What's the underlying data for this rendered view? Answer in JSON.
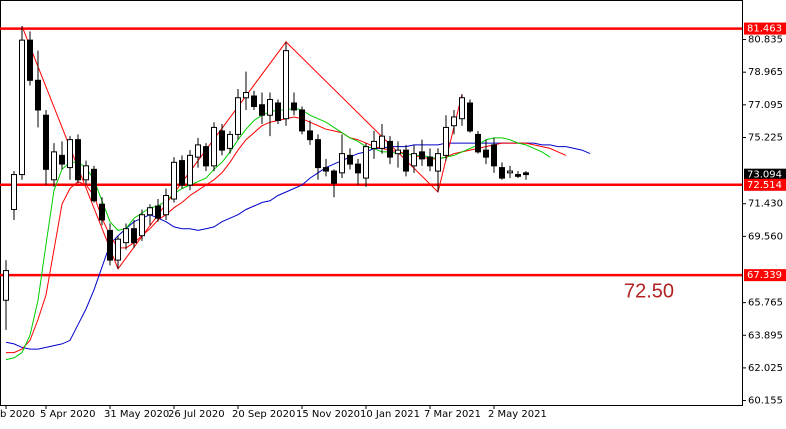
{
  "chart_data": {
    "type": "candlestick",
    "categories": [
      "b 2020",
      null,
      null,
      null,
      null,
      "5 Apr 2020",
      null,
      null,
      null,
      null,
      null,
      null,
      null,
      "31 May 2020",
      null,
      null,
      null,
      null,
      null,
      null,
      null,
      "26 Jul 2020",
      null,
      null,
      null,
      null,
      null,
      null,
      null,
      "20 Sep 2020",
      null,
      null,
      null,
      null,
      null,
      null,
      null,
      "15 Nov 2020",
      null,
      null,
      null,
      null,
      null,
      null,
      null,
      "10 Jan 2021",
      null,
      null,
      null,
      null,
      null,
      null,
      null,
      "7 Mar 2021",
      null,
      null,
      null,
      null,
      null,
      null,
      null,
      "2 May 2021",
      null,
      null,
      null,
      null,
      null,
      null,
      null,
      null,
      null,
      null,
      null,
      null
    ],
    "open": [
      65.9,
      71.1,
      73.1,
      80.8,
      78.5,
      76.5,
      72.8,
      74.2,
      73.5,
      75.1,
      72.8,
      73.4,
      71.4,
      69.9,
      68.2,
      69.2,
      70.0,
      69.6,
      70.8,
      71.3,
      70.8,
      71.7,
      73.9,
      72.5,
      74.1,
      74.7,
      73.6,
      75.6,
      74.6,
      75.4,
      77.5,
      77.6,
      77.1,
      76.5,
      77.2,
      76.3,
      77.2,
      76.8,
      75.6,
      75.1,
      73.5,
      73.3,
      73.2,
      74.2,
      73.7,
      72.9,
      74.6,
      74.6,
      75.0,
      74.3,
      74.5,
      73.6,
      74.4,
      74.1,
      73.3,
      74.2,
      75.9,
      76.3,
      77.2,
      75.4,
      74.5,
      74.8,
      73.5,
      73.2,
      73.1,
      73.2,
      null,
      null,
      null,
      null,
      null,
      null,
      null,
      null
    ],
    "high": [
      68.2,
      73.3,
      81.6,
      81.3,
      80.2,
      76.8,
      74.9,
      75.0,
      75.3,
      75.4,
      73.9,
      73.6,
      71.8,
      70.3,
      69.6,
      70.3,
      70.5,
      71.1,
      71.4,
      71.7,
      72.3,
      74.1,
      74.2,
      74.5,
      75.2,
      74.9,
      76.1,
      76.0,
      75.6,
      78.0,
      79.0,
      77.9,
      77.8,
      77.8,
      77.4,
      80.7,
      77.8,
      77.0,
      76.2,
      75.4,
      74.0,
      73.4,
      75.4,
      74.6,
      74.0,
      74.9,
      75.6,
      76.0,
      75.3,
      75.0,
      74.8,
      74.8,
      75.1,
      74.6,
      74.6,
      76.5,
      76.8,
      77.7,
      77.4,
      75.6,
      75.1,
      75.2,
      73.8,
      73.6,
      73.3,
      73.3,
      null,
      null,
      null,
      null,
      null,
      null,
      null,
      null
    ],
    "low": [
      64.2,
      70.5,
      72.8,
      78.2,
      75.8,
      72.5,
      72.4,
      73.4,
      72.8,
      72.6,
      72.5,
      71.5,
      70.2,
      67.9,
      67.7,
      68.8,
      68.9,
      69.3,
      70.2,
      70.4,
      70.5,
      71.5,
      72.3,
      72.2,
      73.5,
      73.3,
      73.3,
      74.2,
      74.3,
      75.1,
      76.8,
      76.8,
      76.0,
      75.3,
      76.0,
      75.9,
      76.5,
      75.4,
      74.8,
      72.8,
      73.0,
      71.8,
      72.9,
      73.4,
      72.5,
      72.4,
      74.0,
      74.3,
      73.7,
      73.5,
      73.0,
      73.2,
      73.6,
      73.3,
      72.1,
      73.9,
      75.4,
      75.9,
      75.5,
      74.3,
      73.7,
      73.2,
      72.8,
      72.9,
      72.9,
      72.8,
      null,
      null,
      null,
      null,
      null,
      null,
      null,
      null
    ],
    "close": [
      67.6,
      73.1,
      80.8,
      78.5,
      76.8,
      73.4,
      74.4,
      73.7,
      75.1,
      72.8,
      73.6,
      71.6,
      70.5,
      68.2,
      69.4,
      70.0,
      69.2,
      70.8,
      71.2,
      70.6,
      71.9,
      73.8,
      72.5,
      74.2,
      74.8,
      73.6,
      75.8,
      74.5,
      75.4,
      77.5,
      77.8,
      77.0,
      76.5,
      77.4,
      76.2,
      80.2,
      76.8,
      75.6,
      75.1,
      73.5,
      73.3,
      72.6,
      74.3,
      73.7,
      73.2,
      74.7,
      75.0,
      75.3,
      74.1,
      74.5,
      73.3,
      74.3,
      74.0,
      73.6,
      74.3,
      75.8,
      76.4,
      77.5,
      75.6,
      74.4,
      74.1,
      73.6,
      72.9,
      73.3,
      73.0,
      73.1,
      null,
      null,
      null,
      null,
      null,
      null,
      null,
      null
    ],
    "series": [
      {
        "color": "#0000cd",
        "values": [
          63.5,
          63.4,
          63.2,
          63.1,
          63.1,
          63.2,
          63.3,
          63.4,
          63.6,
          64.5,
          65.4,
          66.5,
          67.8,
          69.1,
          69.6,
          70.0,
          70.4,
          70.6,
          70.8,
          70.6,
          70.4,
          70.1,
          70.0,
          70.0,
          69.9,
          70.0,
          70.1,
          70.4,
          70.6,
          70.8,
          71.1,
          71.3,
          71.5,
          71.6,
          71.9,
          72.1,
          72.3,
          72.5,
          72.9,
          73.2,
          73.5,
          73.7,
          73.9,
          74.1,
          74.3,
          74.4,
          74.6,
          74.6,
          74.7,
          74.7,
          74.7,
          74.8,
          74.8,
          74.8,
          74.8,
          74.9,
          74.9,
          74.9,
          74.9,
          74.9,
          74.9,
          74.9,
          74.9,
          74.9,
          74.9,
          74.9,
          74.9,
          74.8,
          74.8,
          74.7,
          74.7,
          74.6,
          74.5,
          74.3
        ]
      },
      {
        "color": "#ff0000",
        "values": [
          62.9,
          62.9,
          63.1,
          63.6,
          64.8,
          66.2,
          68.8,
          71.4,
          72.3,
          72.7,
          72.5,
          71.9,
          70.6,
          69.6,
          68.9,
          68.9,
          69.2,
          69.6,
          70.0,
          70.5,
          70.8,
          71.2,
          71.5,
          71.9,
          72.2,
          72.5,
          72.8,
          73.2,
          73.8,
          74.5,
          75.1,
          75.5,
          75.9,
          76.1,
          76.2,
          76.3,
          76.4,
          76.3,
          76.1,
          75.9,
          75.7,
          75.6,
          75.5,
          75.2,
          75.1,
          74.9,
          74.7,
          74.6,
          74.5,
          74.4,
          74.3,
          74.2,
          74.1,
          74.0,
          74.0,
          74.1,
          74.3,
          74.4,
          74.5,
          74.6,
          74.7,
          74.8,
          74.9,
          74.9,
          74.9,
          74.9,
          74.8,
          74.7,
          74.6,
          74.4,
          74.2,
          null,
          null,
          null
        ]
      },
      {
        "color": "#00cc00",
        "values": [
          62.5,
          62.6,
          62.9,
          63.9,
          65.9,
          69.1,
          72.2,
          73.4,
          73.8,
          73.8,
          73.5,
          72.8,
          71.6,
          70.4,
          69.9,
          70.0,
          70.6,
          70.9,
          71.2,
          71.3,
          71.6,
          72.0,
          72.3,
          72.5,
          72.7,
          72.9,
          73.4,
          73.8,
          74.4,
          75.1,
          75.7,
          76.2,
          76.5,
          76.7,
          76.8,
          76.8,
          76.9,
          76.8,
          76.5,
          76.3,
          76.1,
          75.8,
          75.5,
          75.2,
          75.0,
          74.7,
          74.6,
          74.4,
          74.4,
          74.3,
          74.3,
          74.2,
          74.2,
          74.1,
          74.0,
          74.1,
          74.2,
          74.4,
          74.6,
          74.8,
          75.1,
          75.2,
          75.2,
          75.1,
          74.9,
          74.8,
          74.6,
          74.4,
          74.1,
          null,
          null,
          null,
          null,
          null
        ]
      }
    ],
    "zigzag": {
      "color": "#ff0000",
      "x": [
        2,
        14,
        35,
        54,
        57
      ],
      "values": [
        81.6,
        67.7,
        80.7,
        72.1,
        77.7
      ]
    },
    "levels": [
      81.463,
      72.514,
      67.339
    ],
    "level_color": "#ff0000",
    "last_price": 73.094,
    "annotation": "72.50",
    "ylim": [
      59.9,
      83.1
    ],
    "yticks": [
      80.835,
      78.965,
      77.095,
      75.225,
      {
        "value": 71.43,
        "label": "71.430"
      },
      {
        "value": 69.56,
        "label": "69.560"
      },
      65.765,
      63.895,
      62.025,
      60.155
    ],
    "bull_color": "#ffffff",
    "bear_color": "#000000",
    "grid": false
  }
}
